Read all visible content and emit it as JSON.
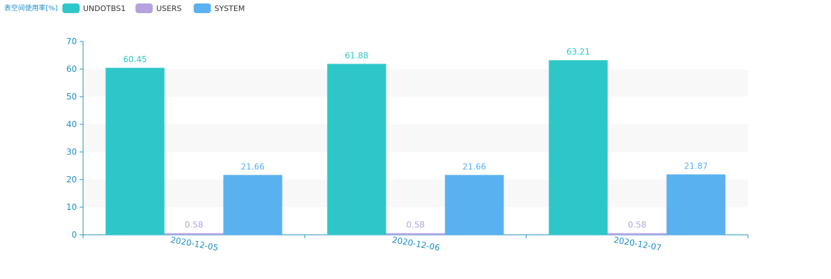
{
  "title": "表空间使用率[%]",
  "colors": {
    "axis": "#1f8fc6",
    "band": "#f8f8f8",
    "tick_text": "#1f8fc6"
  },
  "chart_data": {
    "type": "bar",
    "title": "表空间使用率[%]",
    "xlabel": "",
    "ylabel": "",
    "categories": [
      "2020-12-05",
      "2020-12-06",
      "2020-12-07"
    ],
    "ylim": [
      0,
      70
    ],
    "yticks": [
      0,
      10,
      20,
      30,
      40,
      50,
      60,
      70
    ],
    "grid": "alternating horizontal bands",
    "legend_position": "top-left",
    "series": [
      {
        "name": "UNDOTBS1",
        "color": "#2ec7c9",
        "values": [
          60.45,
          61.88,
          63.21
        ],
        "labels": [
          "60.45",
          "61.88",
          "63.21"
        ]
      },
      {
        "name": "USERS",
        "color": "#b6a2de",
        "values": [
          0.58,
          0.58,
          0.58
        ],
        "labels": [
          "0.58",
          "0.58",
          "0.58"
        ]
      },
      {
        "name": "SYSTEM",
        "color": "#5ab1ef",
        "values": [
          21.66,
          21.66,
          21.87
        ],
        "labels": [
          "21.66",
          "21.66",
          "21.87"
        ]
      }
    ]
  }
}
